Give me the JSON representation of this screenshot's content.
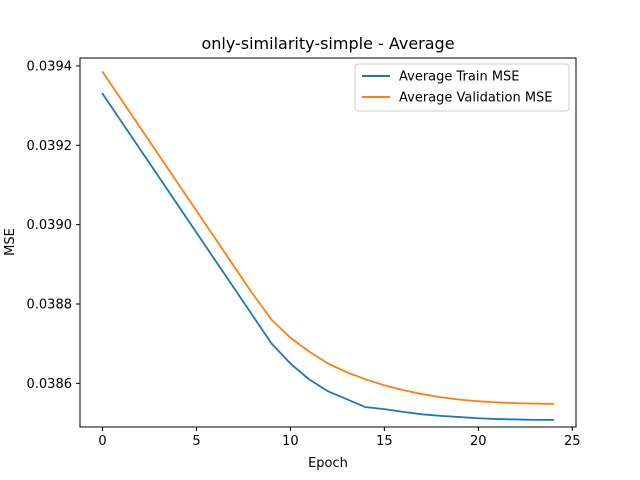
{
  "chart_data": {
    "type": "line",
    "title": "only-similarity-simple - Average",
    "xlabel": "Epoch",
    "ylabel": "MSE",
    "xlim": [
      -1.2,
      25.2
    ],
    "ylim": [
      0.03849,
      0.03942
    ],
    "x_ticks": [
      0,
      5,
      10,
      15,
      20,
      25
    ],
    "x_tick_labels": [
      "0",
      "5",
      "10",
      "15",
      "20",
      "25"
    ],
    "y_ticks": [
      0.0386,
      0.0388,
      0.039,
      0.0392,
      0.0394
    ],
    "y_tick_labels": [
      "0.0386",
      "0.0388",
      "0.0390",
      "0.0392",
      "0.0394"
    ],
    "grid": false,
    "legend_position": "upper right",
    "x": [
      0,
      1,
      2,
      3,
      4,
      5,
      6,
      7,
      8,
      9,
      10,
      11,
      12,
      13,
      14,
      15,
      16,
      17,
      18,
      19,
      20,
      21,
      22,
      23,
      24
    ],
    "series": [
      {
        "name": "Average Train MSE",
        "color": "#1f77b4",
        "values": [
          0.03933,
          0.03926,
          0.03919,
          0.03912,
          0.03905,
          0.03898,
          0.03891,
          0.03884,
          0.03877,
          0.0387,
          0.03865,
          0.03861,
          0.03858,
          0.03856,
          0.03854,
          0.038535,
          0.038528,
          0.038522,
          0.038518,
          0.038515,
          0.038512,
          0.03851,
          0.038509,
          0.038508,
          0.038508
        ]
      },
      {
        "name": "Average Validation MSE",
        "color": "#ff7f0e",
        "values": [
          0.039385,
          0.039315,
          0.039245,
          0.039175,
          0.039105,
          0.039035,
          0.038965,
          0.038895,
          0.038825,
          0.03876,
          0.038715,
          0.03868,
          0.03865,
          0.038628,
          0.03861,
          0.038595,
          0.038583,
          0.038573,
          0.038565,
          0.038559,
          0.038555,
          0.038552,
          0.03855,
          0.038549,
          0.038548
        ]
      }
    ]
  }
}
